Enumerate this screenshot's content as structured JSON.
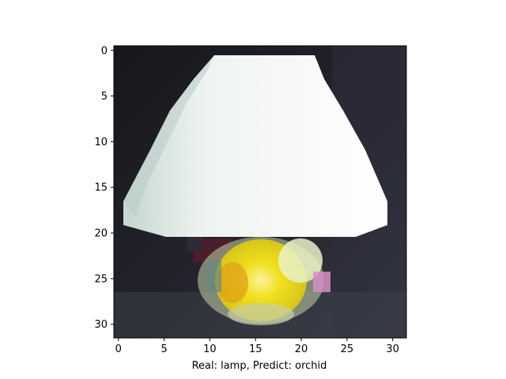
{
  "figure": {
    "xlabel": "Real: lamp, Predict: orchid",
    "x_ticks": [
      "0",
      "5",
      "10",
      "15",
      "20",
      "25",
      "30"
    ],
    "y_ticks": [
      "0",
      "5",
      "10",
      "15",
      "20",
      "25",
      "30"
    ],
    "image_grid": "32x32 pixels",
    "background_color": "#1c1c24"
  }
}
